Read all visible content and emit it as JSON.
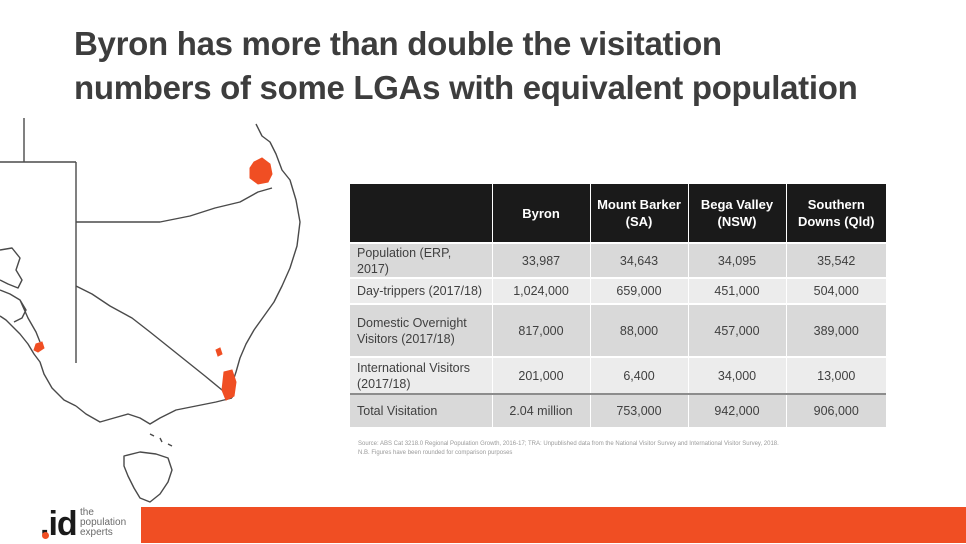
{
  "slide": {
    "title_lines": [
      "Byron has more than double the visitation",
      "numbers of some LGAs with equivalent population"
    ]
  },
  "map": {
    "highlight_color": "#f04e23",
    "line_color": "#4a4a4a"
  },
  "table": {
    "headers": [
      "",
      "Byron",
      "Mount Barker (SA)",
      "Bega Valley (NSW)",
      "Southern Downs (Qld)"
    ],
    "rows": [
      {
        "label": "Population (ERP, 2017)",
        "values": [
          "33,987",
          "34,643",
          "34,095",
          "35,542"
        ]
      },
      {
        "label": "Day-trippers (2017/18)",
        "values": [
          "1,024,000",
          "659,000",
          "451,000",
          "504,000"
        ]
      },
      {
        "label": "Domestic Overnight Visitors (2017/18)",
        "values": [
          "817,000",
          "88,000",
          "457,000",
          "389,000"
        ]
      },
      {
        "label": "International Visitors (2017/18)",
        "values": [
          "201,000",
          "6,400",
          "34,000",
          "13,000"
        ]
      },
      {
        "label": "Total Visitation",
        "values": [
          "2.04 million",
          "753,000",
          "942,000",
          "906,000"
        ]
      }
    ]
  },
  "source_lines": [
    "Source: ABS Cat 3218.0 Regional Population Growth, 2016-17; TRA: Unpublished data from the National Visitor Survey and International Visitor Survey, 2018.",
    "N.B. Figures have been rounded for comparison purposes"
  ],
  "brand": {
    "logo_text": ".id",
    "tagline_lines": [
      "the",
      "population",
      "experts"
    ],
    "accent_color": "#f04e23"
  }
}
